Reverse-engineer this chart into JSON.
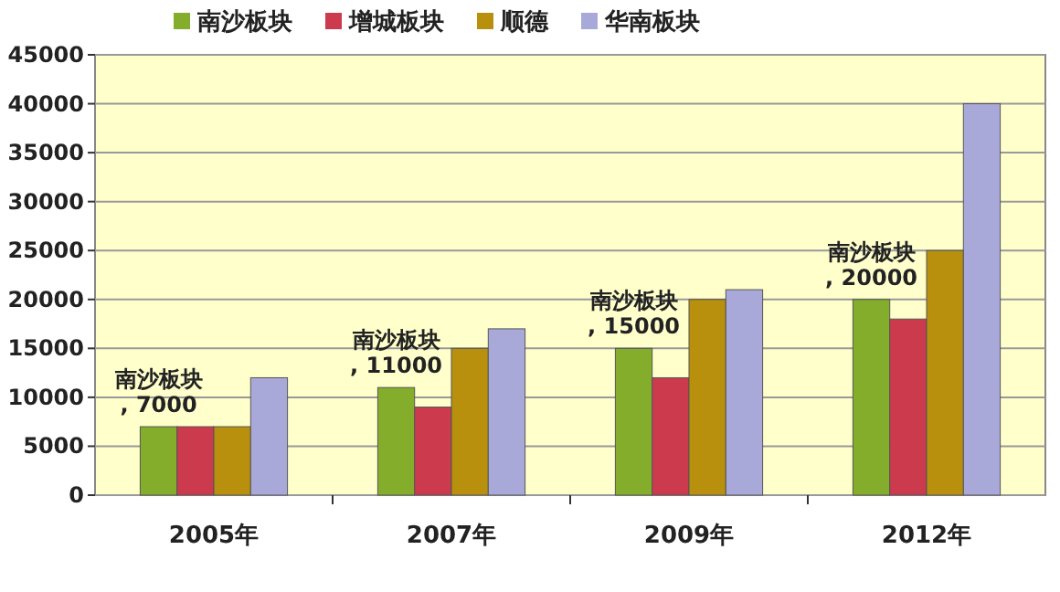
{
  "chart_data": {
    "type": "bar",
    "categories": [
      "2005年",
      "2007年",
      "2009年",
      "2012年"
    ],
    "series": [
      {
        "name": "南沙板块",
        "color": "#84ad2c",
        "values": [
          7000,
          11000,
          15000,
          20000
        ],
        "value_labels": [
          "南沙板块\n, 7000",
          "南沙板块\n, 11000",
          "南沙板块\n, 15000",
          "南沙板块\n, 20000"
        ]
      },
      {
        "name": "增城板块",
        "color": "#cc3a4e",
        "values": [
          7000,
          9000,
          12000,
          18000
        ]
      },
      {
        "name": "顺德",
        "color": "#b8900e",
        "values": [
          7000,
          15000,
          20000,
          25000
        ]
      },
      {
        "name": "华南板块",
        "color": "#a9a9d9",
        "values": [
          12000,
          17000,
          21000,
          40000
        ]
      }
    ],
    "ylim": [
      0,
      45000
    ],
    "yticks": [
      0,
      5000,
      10000,
      15000,
      20000,
      25000,
      30000,
      35000,
      40000,
      45000
    ],
    "grid": "y",
    "legend": "top"
  }
}
